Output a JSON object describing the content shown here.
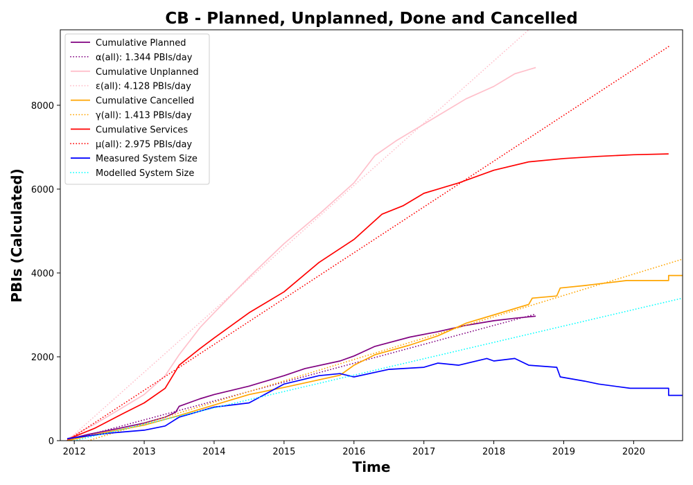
{
  "chart_data": {
    "type": "line",
    "title": "CB - Planned, Unplanned, Done  and Cancelled",
    "xlabel": "Time",
    "ylabel": "PBIs (Calculated)",
    "xlim": [
      2011.8,
      2020.7
    ],
    "ylim": [
      0,
      9800
    ],
    "x_ticks": [
      2012,
      2013,
      2014,
      2015,
      2016,
      2017,
      2018,
      2019,
      2020
    ],
    "x_tick_labels": [
      "2012",
      "2013",
      "2014",
      "2015",
      "2016",
      "2017",
      "2018",
      "2019",
      "2020"
    ],
    "y_ticks": [
      0,
      2000,
      4000,
      6000,
      8000
    ],
    "y_tick_labels": [
      "0",
      "2000",
      "4000",
      "6000",
      "8000"
    ],
    "grid": false,
    "legend_position": "top-left",
    "series": [
      {
        "name": "Cumulative Planned",
        "color": "#800080",
        "style": "solid",
        "x": [
          2011.9,
          2012.2,
          2012.6,
          2013.0,
          2013.3,
          2013.45,
          2013.5,
          2013.8,
          2014.0,
          2014.5,
          2015.0,
          2015.3,
          2015.8,
          2016.0,
          2016.3,
          2016.8,
          2017.2,
          2017.6,
          2018.0,
          2018.3,
          2018.6
        ],
        "y": [
          30,
          150,
          280,
          420,
          560,
          680,
          820,
          1000,
          1100,
          1300,
          1550,
          1720,
          1900,
          2020,
          2250,
          2470,
          2600,
          2750,
          2860,
          2920,
          2970
        ]
      },
      {
        "name": "α(all): 1.344 PBIs/day",
        "color": "#800080",
        "style": "dotted",
        "x": [
          2011.9,
          2018.6
        ],
        "y": [
          0,
          3020
        ]
      },
      {
        "name": "Cumulative Unplanned",
        "color": "#ffc0cb",
        "style": "solid",
        "x": [
          2011.9,
          2012.3,
          2012.7,
          2013.0,
          2013.3,
          2013.5,
          2013.8,
          2014.0,
          2014.5,
          2015.0,
          2015.5,
          2016.0,
          2016.3,
          2016.6,
          2017.0,
          2017.3,
          2017.6,
          2018.0,
          2018.3,
          2018.6
        ],
        "y": [
          40,
          400,
          800,
          1100,
          1550,
          2050,
          2700,
          3050,
          3900,
          4700,
          5400,
          6150,
          6800,
          7150,
          7550,
          7850,
          8150,
          8450,
          8750,
          8900
        ]
      },
      {
        "name": "ε(all): 4.128 PBIs/day",
        "color": "#ffc0cb",
        "style": "dotted",
        "x": [
          2011.9,
          2018.5
        ],
        "y": [
          0,
          9800
        ]
      },
      {
        "name": "Cumulative Cancelled",
        "color": "#ffa500",
        "style": "solid",
        "x": [
          2011.9,
          2012.3,
          2013.0,
          2013.5,
          2014.0,
          2014.5,
          2015.0,
          2015.8,
          2016.0,
          2016.3,
          2016.8,
          2017.2,
          2017.6,
          2018.0,
          2018.5,
          2018.55,
          2018.9,
          2018.95,
          2019.3,
          2019.5,
          2019.9,
          2020.5,
          2020.5,
          2020.7
        ],
        "y": [
          0,
          150,
          370,
          600,
          850,
          1100,
          1270,
          1560,
          1800,
          2050,
          2280,
          2500,
          2800,
          3000,
          3250,
          3400,
          3450,
          3640,
          3700,
          3740,
          3820,
          3820,
          3940,
          3940
        ]
      },
      {
        "name": "γ(all): 1.413 PBIs/day",
        "color": "#ffa500",
        "style": "dotted",
        "x": [
          2012.2,
          2020.7
        ],
        "y": [
          0,
          4330
        ]
      },
      {
        "name": "Cumulative Services",
        "color": "#ff0000",
        "style": "solid",
        "x": [
          2011.9,
          2012.3,
          2012.7,
          2013.0,
          2013.3,
          2013.5,
          2013.8,
          2014.0,
          2014.5,
          2015.0,
          2015.5,
          2016.0,
          2016.4,
          2016.7,
          2017.0,
          2017.5,
          2018.0,
          2018.5,
          2019.0,
          2019.5,
          2020.0,
          2020.5
        ],
        "y": [
          30,
          300,
          650,
          900,
          1250,
          1800,
          2200,
          2450,
          3050,
          3550,
          4250,
          4800,
          5400,
          5600,
          5900,
          6150,
          6450,
          6650,
          6730,
          6780,
          6820,
          6840
        ]
      },
      {
        "name": "μ(all): 2.975 PBIs/day",
        "color": "#ff0000",
        "style": "dotted",
        "x": [
          2011.9,
          2020.5
        ],
        "y": [
          0,
          9400
        ]
      },
      {
        "name": "Measured System Size",
        "color": "#0000ff",
        "style": "solid",
        "x": [
          2011.9,
          2012.5,
          2013.0,
          2013.3,
          2013.5,
          2014.0,
          2014.5,
          2015.0,
          2015.5,
          2015.8,
          2016.0,
          2016.5,
          2017.0,
          2017.2,
          2017.5,
          2017.9,
          2018.0,
          2018.3,
          2018.5,
          2018.9,
          2018.95,
          2019.3,
          2019.5,
          2019.95,
          2020.5,
          2020.5,
          2020.7
        ],
        "y": [
          50,
          180,
          250,
          350,
          560,
          800,
          900,
          1350,
          1550,
          1600,
          1520,
          1700,
          1750,
          1850,
          1800,
          1960,
          1900,
          1960,
          1800,
          1750,
          1520,
          1420,
          1350,
          1250,
          1250,
          1080,
          1080
        ]
      },
      {
        "name": "Modelled System Size",
        "color": "#00ffff",
        "style": "dotted",
        "x": [
          2012.0,
          2020.7
        ],
        "y": [
          0,
          3400
        ]
      }
    ]
  }
}
